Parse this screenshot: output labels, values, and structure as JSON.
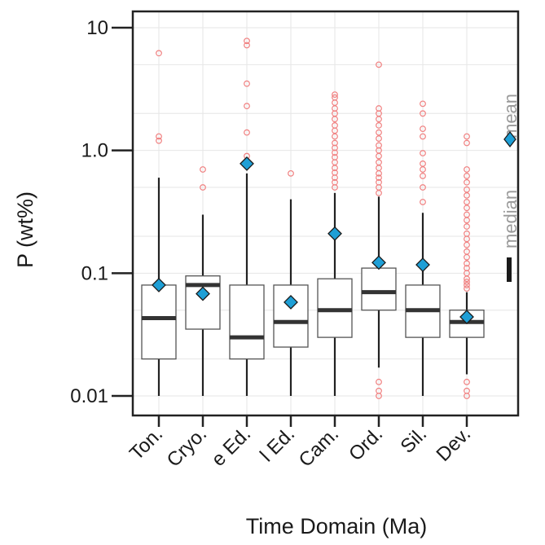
{
  "chart_data": {
    "type": "box",
    "ylabel": "P (wt%)",
    "xlabel": "Time Domain (Ma)",
    "yscale": "log",
    "ylim": [
      0.0085,
      16
    ],
    "yticks": [
      {
        "value": 10,
        "label": "10"
      },
      {
        "value": 1,
        "label": "1.0"
      },
      {
        "value": 0.1,
        "label": "0.1"
      },
      {
        "value": 0.01,
        "label": "0.01"
      }
    ],
    "grid": true,
    "legend_position": "right",
    "legend": {
      "mean_label": "mean",
      "median_label": "median"
    },
    "categories": [
      "Ton.",
      "Cryo.",
      "e Ed.",
      "l Ed.",
      "Cam.",
      "Ord.",
      "Sil.",
      "Dev."
    ],
    "boxes": [
      {
        "category": "Ton.",
        "whisker_low": 0.01,
        "q1": 0.02,
        "median": 0.043,
        "q3": 0.08,
        "whisker_high": 0.6,
        "mean": 0.08,
        "outliers": [
          1.2,
          1.3,
          6.2
        ]
      },
      {
        "category": "Cryo.",
        "whisker_low": 0.01,
        "q1": 0.035,
        "median": 0.08,
        "q3": 0.095,
        "whisker_high": 0.3,
        "mean": 0.068,
        "outliers": [
          0.5,
          0.7
        ]
      },
      {
        "category": "e Ed.",
        "whisker_low": 0.01,
        "q1": 0.02,
        "median": 0.03,
        "q3": 0.08,
        "whisker_high": 0.65,
        "mean": 0.78,
        "outliers": [
          0.82,
          0.9,
          1.4,
          2.3,
          3.5,
          7.2,
          7.8
        ]
      },
      {
        "category": "l Ed.",
        "whisker_low": 0.01,
        "q1": 0.025,
        "median": 0.04,
        "q3": 0.08,
        "whisker_high": 0.4,
        "mean": 0.058,
        "outliers": [
          0.65
        ]
      },
      {
        "category": "Cam.",
        "whisker_low": 0.01,
        "q1": 0.03,
        "median": 0.05,
        "q3": 0.09,
        "whisker_high": 0.45,
        "mean": 0.21,
        "outliers": [
          0.5,
          0.55,
          0.6,
          0.66,
          0.72,
          0.8,
          0.88,
          0.96,
          1.05,
          1.15,
          1.3,
          1.45,
          1.6,
          1.8,
          2.0,
          2.2,
          2.45,
          2.7,
          2.85
        ]
      },
      {
        "category": "Ord.",
        "whisker_low": 0.017,
        "q1": 0.05,
        "median": 0.07,
        "q3": 0.11,
        "whisker_high": 0.42,
        "mean": 0.122,
        "outliers": [
          0.01,
          0.011,
          0.013,
          0.45,
          0.5,
          0.55,
          0.6,
          0.65,
          0.72,
          0.8,
          0.9,
          1.0,
          1.1,
          1.25,
          1.4,
          1.6,
          1.8,
          2.0,
          2.2,
          5.0
        ]
      },
      {
        "category": "Sil.",
        "whisker_low": 0.01,
        "q1": 0.03,
        "median": 0.05,
        "q3": 0.08,
        "whisker_high": 0.31,
        "mean": 0.117,
        "outliers": [
          0.38,
          0.5,
          0.62,
          0.7,
          0.78,
          0.95,
          1.3,
          1.5,
          2.0,
          2.4
        ]
      },
      {
        "category": "Dev.",
        "whisker_low": 0.015,
        "q1": 0.03,
        "median": 0.04,
        "q3": 0.05,
        "whisker_high": 0.07,
        "mean": 0.044,
        "outliers": [
          0.01,
          0.011,
          0.013,
          0.075,
          0.08,
          0.085,
          0.09,
          0.1,
          0.11,
          0.12,
          0.135,
          0.15,
          0.17,
          0.19,
          0.21,
          0.24,
          0.27,
          0.3,
          0.34,
          0.38,
          0.43,
          0.48,
          0.55,
          0.62,
          0.7,
          1.15,
          1.3
        ]
      }
    ],
    "colors": {
      "outlier": "#f08080",
      "mean_fill": "#1e9fd6",
      "mean_stroke": "#1a1a1a",
      "median": "#333333",
      "grid": "#e6e6e6",
      "axis": "#222222",
      "legend_text": "#9a9a9a"
    }
  }
}
